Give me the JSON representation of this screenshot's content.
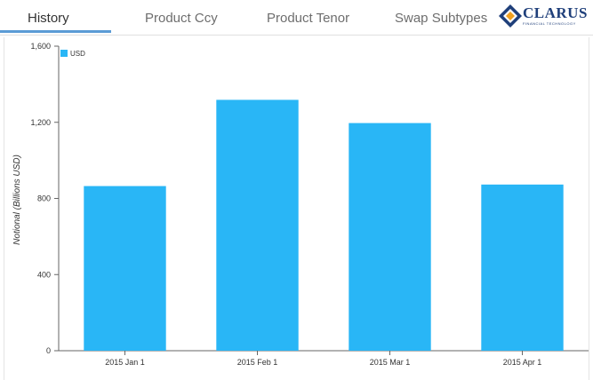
{
  "tabs": [
    {
      "label": "History",
      "active": true
    },
    {
      "label": "Product Ccy",
      "active": false
    },
    {
      "label": "Product Tenor",
      "active": false
    },
    {
      "label": "Swap Subtypes",
      "active": false
    }
  ],
  "logo": {
    "word": "CLARUS",
    "subtitle": "FINANCIAL TECHNOLOGY",
    "colors": {
      "blue": "#1f3f7a",
      "orange": "#f0a020"
    }
  },
  "chart_data": {
    "type": "bar",
    "categories": [
      "2015 Jan 1",
      "2015 Feb 1",
      "2015 Mar 1",
      "2015 Apr 1"
    ],
    "series": [
      {
        "name": "USD",
        "values": [
          865,
          1318,
          1196,
          873
        ],
        "color": "#29b6f6"
      }
    ],
    "title": "",
    "xlabel": "",
    "ylabel": "Notional (Billions USD)",
    "ylim": [
      0,
      1600
    ],
    "yticks": [
      0,
      400,
      800,
      1200,
      1600
    ],
    "ytick_labels": [
      "0",
      "400",
      "800",
      "1,200",
      "1,600"
    ],
    "legend": "top-left",
    "grid": false
  }
}
